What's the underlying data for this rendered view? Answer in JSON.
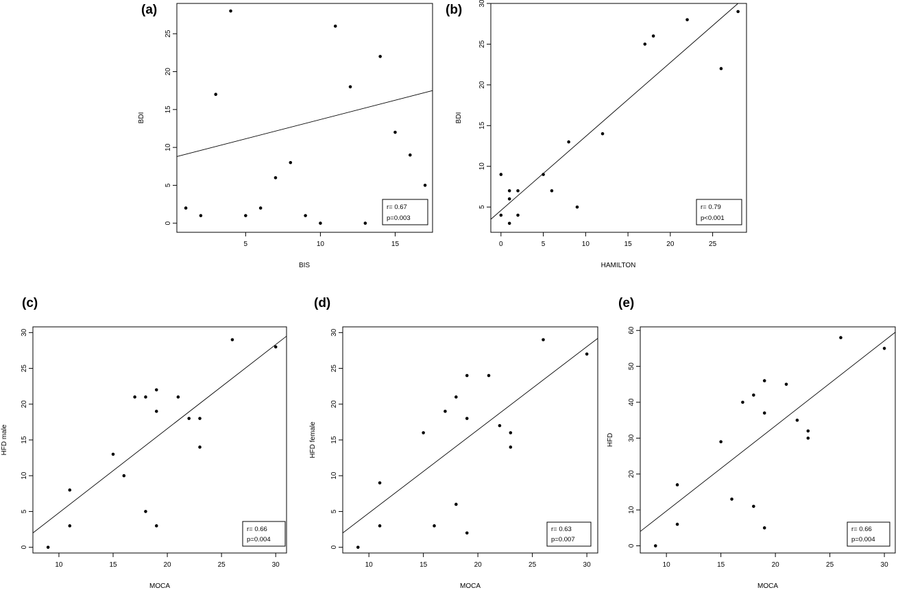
{
  "chart_data": [
    {
      "panel": "(a)",
      "type": "scatter",
      "xlabel": "BIS",
      "ylabel": "BDI",
      "xlim": [
        0.4,
        17.5
      ],
      "ylim": [
        -1.2,
        29.0
      ],
      "xticks": [
        5,
        10,
        15
      ],
      "yticks": [
        0,
        5,
        10,
        15,
        20,
        25
      ],
      "ytick_rotate": true,
      "points": [
        [
          1,
          2
        ],
        [
          2,
          1
        ],
        [
          3,
          17
        ],
        [
          4,
          28
        ],
        [
          5,
          1
        ],
        [
          6,
          2
        ],
        [
          7,
          6
        ],
        [
          8,
          8
        ],
        [
          9,
          1
        ],
        [
          10,
          0
        ],
        [
          11,
          26
        ],
        [
          12,
          18
        ],
        [
          13,
          0
        ],
        [
          14,
          22
        ],
        [
          15,
          12
        ],
        [
          16,
          9
        ],
        [
          17,
          5
        ]
      ],
      "fit_line": [
        [
          0.4,
          8.8
        ],
        [
          17.5,
          17.5
        ]
      ],
      "stats": [
        "r= 0.67",
        "p=0.003"
      ]
    },
    {
      "panel": "(b)",
      "type": "scatter",
      "xlabel": "HAMILTON",
      "ylabel": "BDI",
      "xlim": [
        -1.2,
        29.0
      ],
      "ylim": [
        1.9,
        30.0
      ],
      "xticks": [
        0,
        5,
        10,
        15,
        20,
        25
      ],
      "yticks": [
        5,
        10,
        15,
        20,
        25,
        30
      ],
      "ytick_rotate": true,
      "points": [
        [
          0,
          9
        ],
        [
          0,
          4
        ],
        [
          1,
          7
        ],
        [
          1,
          6
        ],
        [
          1,
          3
        ],
        [
          2,
          7
        ],
        [
          2,
          4
        ],
        [
          5,
          9
        ],
        [
          6,
          7
        ],
        [
          8,
          13
        ],
        [
          9,
          5
        ],
        [
          12,
          14
        ],
        [
          17,
          25
        ],
        [
          18,
          26
        ],
        [
          22,
          28
        ],
        [
          26,
          22
        ],
        [
          28,
          29
        ]
      ],
      "fit_line": [
        [
          -1.2,
          3.5
        ],
        [
          28.0,
          30.0
        ]
      ],
      "stats": [
        "r= 0.79",
        "p<0.001"
      ]
    },
    {
      "panel": "(c)",
      "type": "scatter",
      "xlabel": "MOCA",
      "ylabel": "HFD male",
      "xlim": [
        7.6,
        31.0
      ],
      "ylim": [
        -0.8,
        30.8
      ],
      "xticks": [
        10,
        15,
        20,
        25,
        30
      ],
      "yticks": [
        0,
        5,
        10,
        15,
        20,
        25,
        30
      ],
      "ytick_rotate": true,
      "points": [
        [
          9,
          0
        ],
        [
          11,
          8
        ],
        [
          11,
          3
        ],
        [
          15,
          13
        ],
        [
          16,
          10
        ],
        [
          17,
          21
        ],
        [
          18,
          21
        ],
        [
          18,
          5
        ],
        [
          19,
          22
        ],
        [
          19,
          19
        ],
        [
          19,
          3
        ],
        [
          21,
          21
        ],
        [
          22,
          18
        ],
        [
          23,
          18
        ],
        [
          23,
          14
        ],
        [
          26,
          29
        ],
        [
          30,
          28
        ]
      ],
      "fit_line": [
        [
          7.6,
          2.0
        ],
        [
          31.0,
          29.5
        ]
      ],
      "stats": [
        "r= 0.66",
        "p=0.004"
      ]
    },
    {
      "panel": "(d)",
      "type": "scatter",
      "xlabel": "MOCA",
      "ylabel": "HFD female",
      "xlim": [
        7.6,
        31.0
      ],
      "ylim": [
        -0.8,
        30.8
      ],
      "xticks": [
        10,
        15,
        20,
        25,
        30
      ],
      "yticks": [
        0,
        5,
        10,
        15,
        20,
        25,
        30
      ],
      "ytick_rotate": true,
      "points": [
        [
          9,
          0
        ],
        [
          11,
          9
        ],
        [
          11,
          3
        ],
        [
          15,
          16
        ],
        [
          16,
          3
        ],
        [
          17,
          19
        ],
        [
          18,
          21
        ],
        [
          18,
          6
        ],
        [
          19,
          24
        ],
        [
          19,
          18
        ],
        [
          19,
          2
        ],
        [
          21,
          24
        ],
        [
          22,
          17
        ],
        [
          23,
          16
        ],
        [
          23,
          14
        ],
        [
          26,
          29
        ],
        [
          30,
          27
        ]
      ],
      "fit_line": [
        [
          7.6,
          2.0
        ],
        [
          31.0,
          29.2
        ]
      ],
      "stats": [
        "r= 0.63",
        "p=0.007"
      ]
    },
    {
      "panel": "(e)",
      "type": "scatter",
      "xlabel": "MOCA",
      "ylabel": "HFD",
      "xlim": [
        7.6,
        31.0
      ],
      "ylim": [
        -2.0,
        61.0
      ],
      "xticks": [
        10,
        15,
        20,
        25,
        30
      ],
      "yticks": [
        0,
        10,
        20,
        30,
        40,
        50,
        60
      ],
      "ytick_rotate": true,
      "points": [
        [
          9,
          0
        ],
        [
          11,
          17
        ],
        [
          11,
          6
        ],
        [
          15,
          29
        ],
        [
          16,
          13
        ],
        [
          17,
          40
        ],
        [
          18,
          42
        ],
        [
          18,
          11
        ],
        [
          19,
          46
        ],
        [
          19,
          37
        ],
        [
          19,
          5
        ],
        [
          21,
          45
        ],
        [
          22,
          35
        ],
        [
          23,
          32
        ],
        [
          23,
          30
        ],
        [
          26,
          58
        ],
        [
          30,
          55
        ]
      ],
      "fit_line": [
        [
          7.6,
          4.0
        ],
        [
          31.0,
          59.5
        ]
      ],
      "stats": [
        "r= 0.66",
        "p=0.004"
      ]
    }
  ]
}
